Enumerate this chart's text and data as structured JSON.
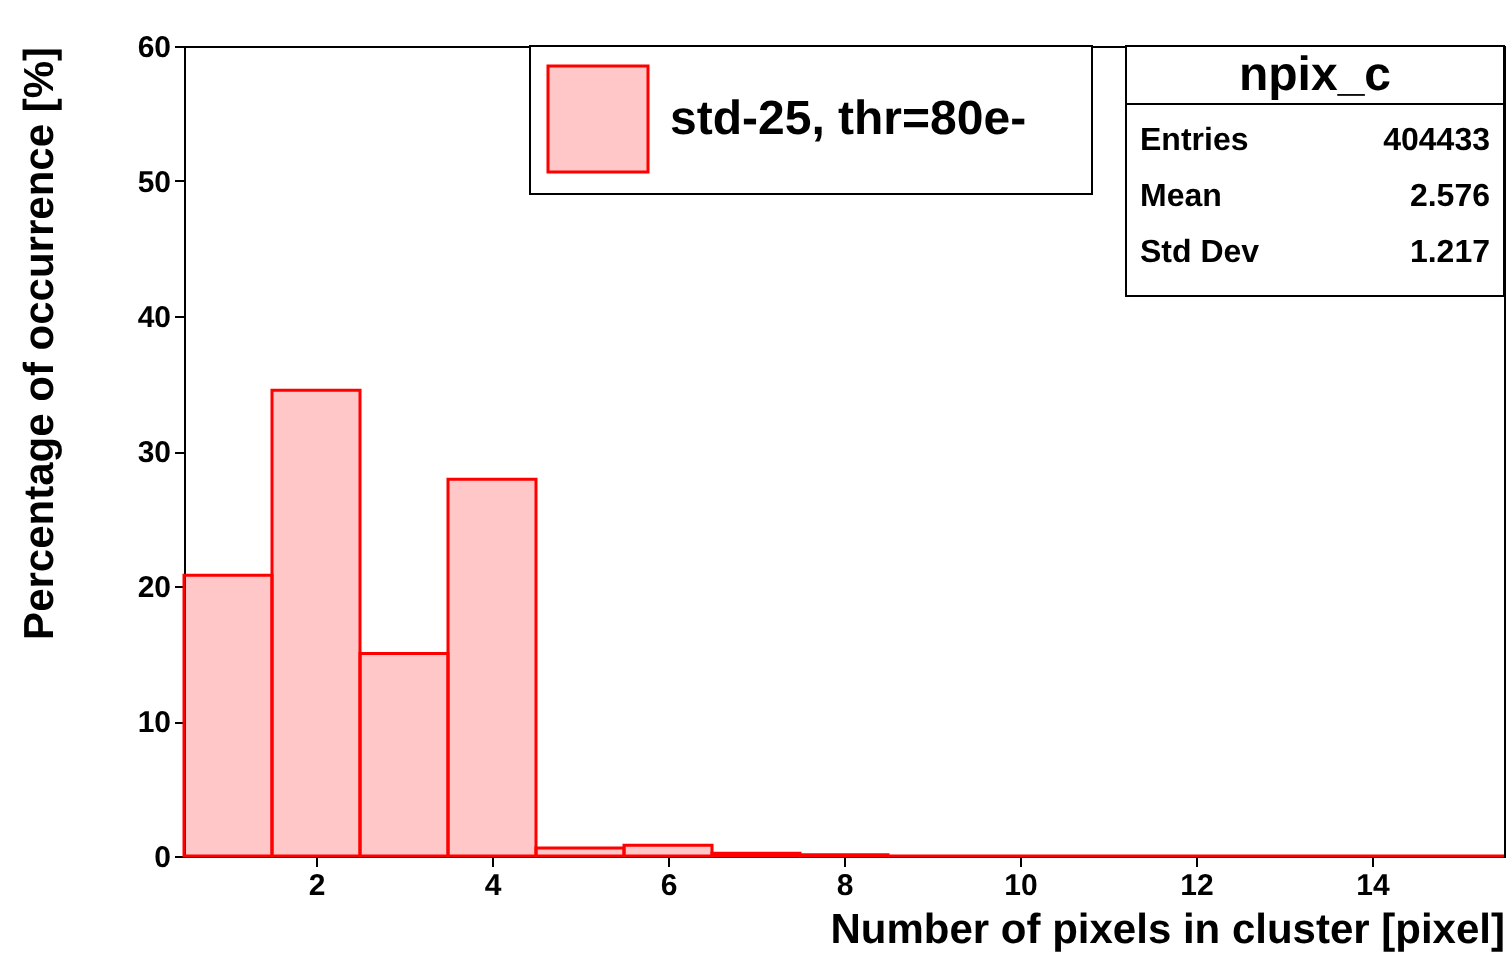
{
  "chart_data": {
    "type": "histogram",
    "xlabel": "Number of pixels in cluster [pixel]",
    "ylabel": "Percentage of occurrence [%]",
    "bins": [
      0.5,
      1.5,
      2.5,
      3.5,
      4.5,
      5.5,
      6.5,
      7.5,
      8.5,
      9.5,
      10.5,
      11.5,
      12.5,
      13.5,
      14.5,
      15.5
    ],
    "series": [
      {
        "name": "std-25, thr=80e-",
        "color": "#ff0000",
        "values": [
          20.8,
          34.5,
          15.0,
          27.9,
          0.6,
          0.8,
          0.2,
          0.1,
          0,
          0,
          0,
          0,
          0,
          0,
          0
        ]
      }
    ],
    "xlim": [
      0.5,
      15.5
    ],
    "xticks": [
      2,
      4,
      6,
      8,
      10,
      12,
      14
    ],
    "ylim": [
      0,
      60
    ],
    "yticks": [
      0,
      10,
      20,
      30,
      40,
      50,
      60
    ],
    "grid": false,
    "legend": "top",
    "annotations": [
      "npix_c",
      "Entries 404433",
      "Mean 2.576",
      "Std Dev 1.217"
    ]
  }
}
